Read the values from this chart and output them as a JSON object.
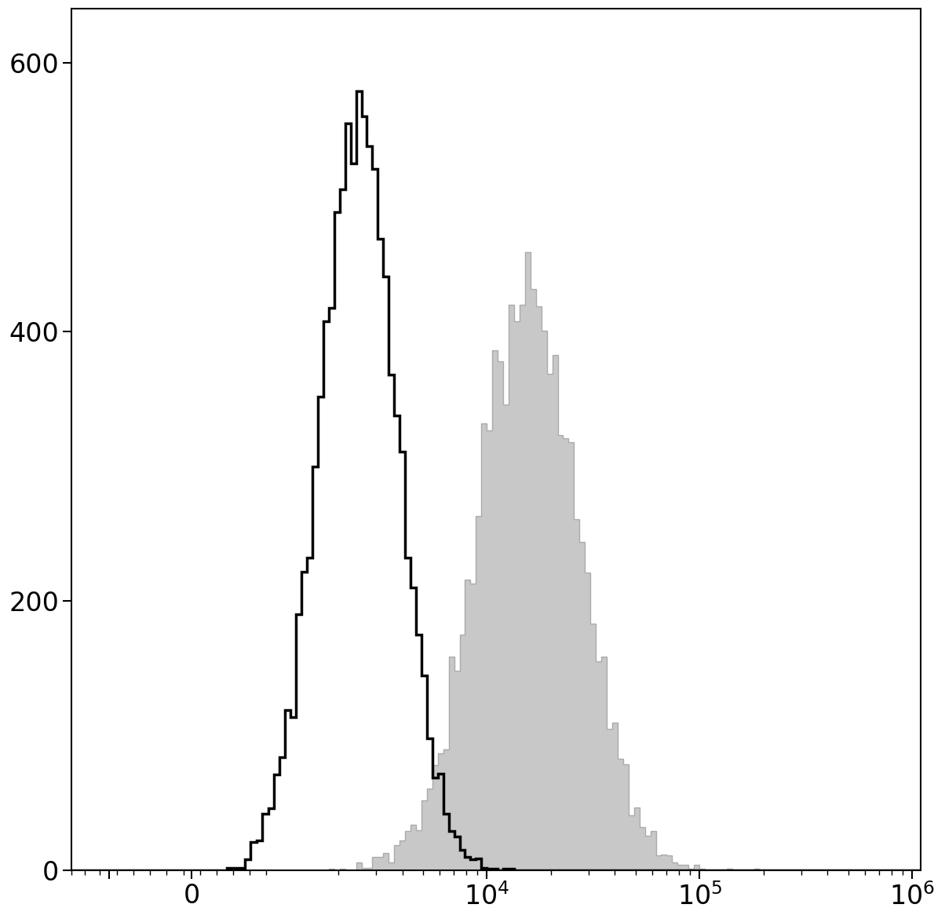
{
  "title": "",
  "xlabel": "",
  "ylabel": "",
  "ylim": [
    0,
    640
  ],
  "yticks": [
    0,
    200,
    400,
    600
  ],
  "bg_color": "#ffffff",
  "isotype_color": "#000000",
  "antibody_fill_color": "#c8c8c8",
  "antibody_edge_color": "#aaaaaa",
  "isotype_linewidth": 2.5,
  "antibody_linewidth": 1.0,
  "xmin": -1500,
  "xmax": 1100000,
  "linthresh": 1000,
  "linscale": 0.35,
  "seed": 42,
  "isotype_n": 10000,
  "isotype_log_mean": 7.82,
  "isotype_log_sigma": 0.42,
  "antibody_n": 10000,
  "antibody_log_mean": 9.65,
  "antibody_log_sigma": 0.55,
  "n_bins_neg": 15,
  "n_bins_lin": 15,
  "n_bins_log": 120,
  "tick_labelsize": 24
}
